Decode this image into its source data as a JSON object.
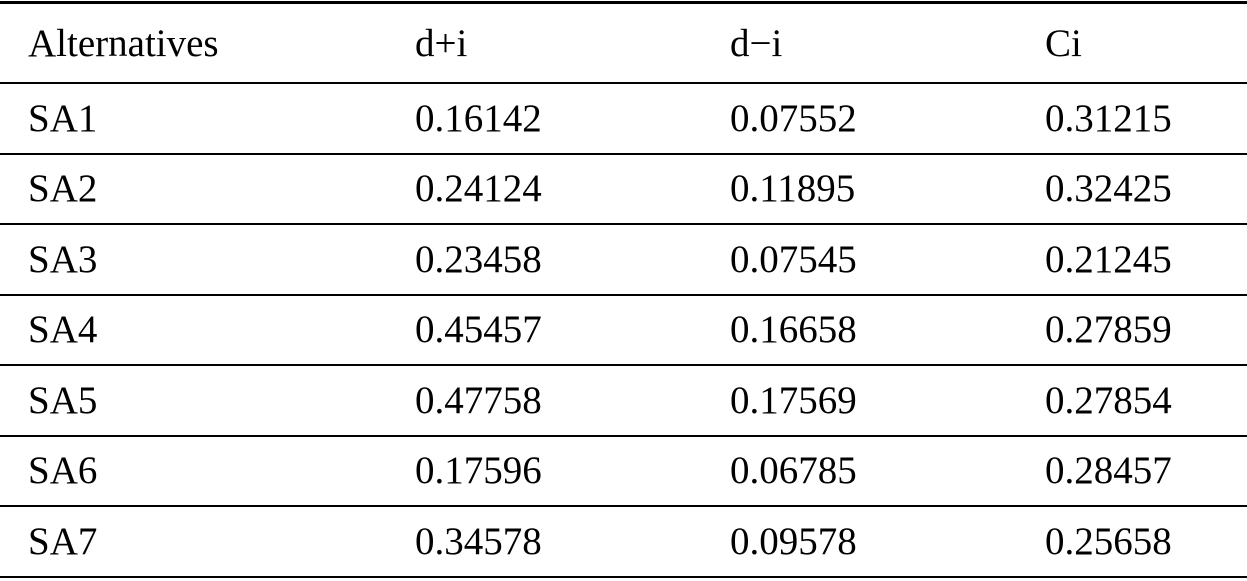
{
  "table": {
    "header": [
      "Alternatives",
      "d+i",
      "d−i",
      "Ci"
    ],
    "rows": [
      [
        "SA1",
        "0.16142",
        "0.07552",
        "0.31215"
      ],
      [
        "SA2",
        "0.24124",
        "0.11895",
        "0.32425"
      ],
      [
        "SA3",
        "0.23458",
        "0.07545",
        "0.21245"
      ],
      [
        "SA4",
        "0.45457",
        "0.16658",
        "0.27859"
      ],
      [
        "SA5",
        "0.47758",
        "0.17569",
        "0.27854"
      ],
      [
        "SA6",
        "0.17596",
        "0.06785",
        "0.28457"
      ],
      [
        "SA7",
        "0.34578",
        "0.09578",
        "0.25658"
      ]
    ]
  }
}
